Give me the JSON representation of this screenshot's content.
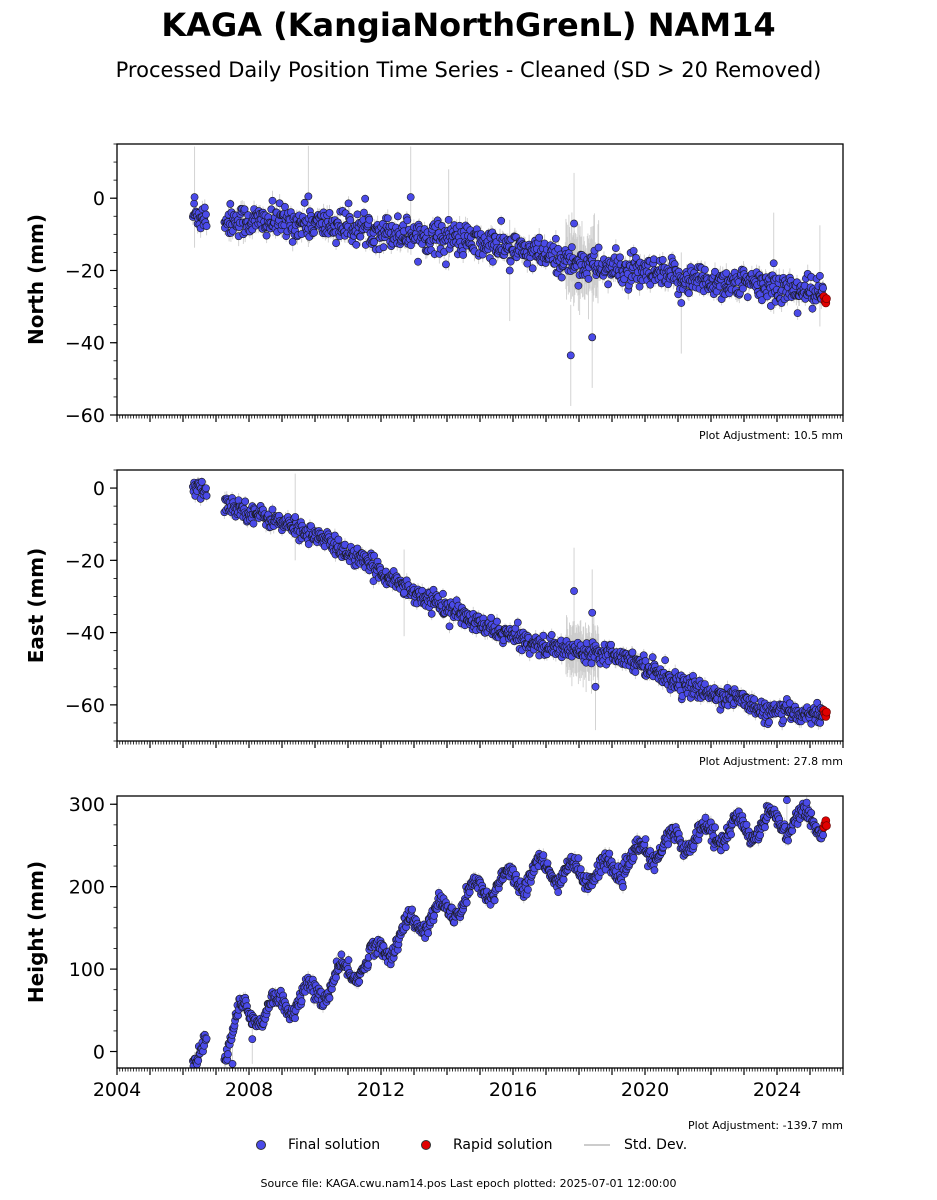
{
  "title": "KAGA (KangiaNorthGrenL) NAM14",
  "subtitle": "Processed Daily Position Time Series - Cleaned (SD > 20 Removed)",
  "source_line": "Source file: KAGA.cwu.nam14.pos  Last epoch plotted: 2025-07-01 12:00:00",
  "colors": {
    "final": "#4a4ae8",
    "rapid": "#e00000",
    "stddev": "#c8c8c8",
    "edge": "#1a1a1a"
  },
  "legend": {
    "final_label": "Final solution",
    "rapid_label": "Rapid solution",
    "stddev_label": "Std. Dev."
  },
  "chart_data": [
    {
      "type": "scatter",
      "ylabel": "North (mm)",
      "xlim": [
        2004,
        2026
      ],
      "ylim": [
        -60,
        15
      ],
      "yticks": [
        0,
        -20,
        -40,
        -60
      ],
      "ytick_labels": [
        "0",
        "−20",
        "−40",
        "−60"
      ],
      "adjustment": "Plot Adjustment: 10.5 mm",
      "trend": [
        [
          2006.3,
          -4.5
        ],
        [
          2007.3,
          -6
        ],
        [
          2010,
          -7
        ],
        [
          2012,
          -9
        ],
        [
          2014,
          -11
        ],
        [
          2016,
          -14
        ],
        [
          2018,
          -18
        ],
        [
          2020,
          -21
        ],
        [
          2022,
          -23
        ],
        [
          2024,
          -24.5
        ],
        [
          2025.45,
          -27
        ]
      ],
      "noise": 2.2,
      "err": 2.0,
      "outliers": [
        [
          2006.35,
          0.3
        ],
        [
          2009.8,
          0.5
        ],
        [
          2012.9,
          0.3
        ],
        [
          2017.75,
          -43.5
        ],
        [
          2017.85,
          -7
        ],
        [
          2018.4,
          -38.5
        ],
        [
          2014.05,
          -6
        ],
        [
          2015.9,
          -20
        ],
        [
          2021.1,
          -29
        ],
        [
          2023.9,
          -18
        ],
        [
          2025.3,
          -21.5
        ]
      ],
      "rapid": [
        [
          2025.42,
          -27.2
        ],
        [
          2025.45,
          -28.5
        ],
        [
          2025.48,
          -29
        ],
        [
          2025.5,
          -27.8
        ]
      ]
    },
    {
      "type": "scatter",
      "ylabel": "East (mm)",
      "xlim": [
        2004,
        2026
      ],
      "ylim": [
        -70,
        5
      ],
      "yticks": [
        0,
        -20,
        -40,
        -60
      ],
      "ytick_labels": [
        "0",
        "−20",
        "−40",
        "−60"
      ],
      "adjustment": "Plot Adjustment: 27.8 mm",
      "trend": [
        [
          2006.3,
          0
        ],
        [
          2006.7,
          -1
        ],
        [
          2007.3,
          -4.5
        ],
        [
          2008.5,
          -8
        ],
        [
          2010,
          -13
        ],
        [
          2011,
          -18
        ],
        [
          2012,
          -23
        ],
        [
          2013,
          -29
        ],
        [
          2014,
          -33
        ],
        [
          2015,
          -38
        ],
        [
          2016,
          -41
        ],
        [
          2017,
          -44
        ],
        [
          2018,
          -45
        ],
        [
          2019,
          -45.5
        ],
        [
          2020,
          -49
        ],
        [
          2021,
          -54
        ],
        [
          2022,
          -57
        ],
        [
          2023,
          -58.5
        ],
        [
          2023.5,
          -62
        ],
        [
          2024,
          -62
        ],
        [
          2025.45,
          -62.5
        ]
      ],
      "noise": 1.3,
      "err": 1.5,
      "outliers": [
        [
          2017.85,
          -28.5
        ],
        [
          2018.4,
          -34.5
        ],
        [
          2018.5,
          -55
        ],
        [
          2012.7,
          -29
        ],
        [
          2009.4,
          -8
        ]
      ],
      "rapid": [
        [
          2025.42,
          -61.5
        ],
        [
          2025.45,
          -62.5
        ],
        [
          2025.48,
          -63.2
        ],
        [
          2025.5,
          -62
        ]
      ]
    },
    {
      "type": "scatter",
      "ylabel": "Height (mm)",
      "xlim": [
        2004,
        2026
      ],
      "ylim": [
        -20,
        310
      ],
      "yticks": [
        0,
        100,
        200,
        300
      ],
      "ytick_labels": [
        "0",
        "100",
        "200",
        "300"
      ],
      "xticks": [
        2004,
        2008,
        2012,
        2016,
        2020,
        2024
      ],
      "xtick_labels": [
        "2004",
        "2008",
        "2012",
        "2016",
        "2020",
        "2024"
      ],
      "adjustment": "Plot Adjustment: -139.7 mm",
      "trend": [
        [
          2006.3,
          0
        ],
        [
          2006.7,
          5
        ],
        [
          2007.3,
          5
        ],
        [
          2007.6,
          40
        ],
        [
          2008.5,
          50
        ],
        [
          2010,
          70
        ],
        [
          2011,
          95
        ],
        [
          2012,
          120
        ],
        [
          2013,
          155
        ],
        [
          2014,
          170
        ],
        [
          2015,
          195
        ],
        [
          2016,
          210
        ],
        [
          2017,
          220
        ],
        [
          2018,
          215
        ],
        [
          2019,
          220
        ],
        [
          2020,
          240
        ],
        [
          2021,
          255
        ],
        [
          2022,
          265
        ],
        [
          2023,
          270
        ],
        [
          2024,
          280
        ],
        [
          2025.45,
          278
        ]
      ],
      "noise": 5,
      "err": 6,
      "seasonal": 14,
      "outliers": [
        [
          2007.5,
          -15
        ],
        [
          2008.1,
          15
        ],
        [
          2024.3,
          305
        ],
        [
          2024.9,
          302
        ]
      ],
      "rapid": [
        [
          2025.42,
          272
        ],
        [
          2025.45,
          276
        ],
        [
          2025.48,
          280
        ],
        [
          2025.5,
          274
        ]
      ]
    }
  ]
}
